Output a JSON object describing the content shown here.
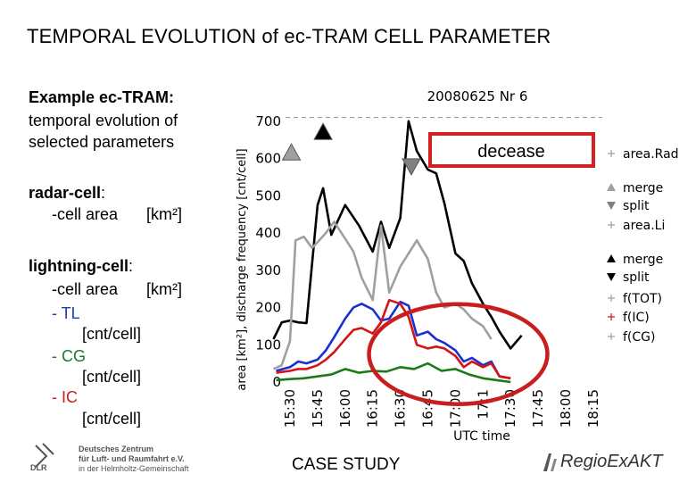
{
  "title": "TEMPORAL EVOLUTION of ec-TRAM CELL PARAMETER",
  "sidebar": {
    "intro_heading": "Example ec-TRAM:",
    "intro_line1": "temporal evolution of",
    "intro_line2": "selected parameters",
    "radar_heading": "radar-cell",
    "radar_colon": ":",
    "radar_area": "-cell area",
    "radar_unit": "[km²]",
    "lightning_heading": "lightning-cell",
    "lightning_colon": ":",
    "lightning_area": "-cell area",
    "lightning_unit": "[km²]",
    "tl_label": "- TL",
    "tl_unit": "[cnt/cell]",
    "cg_label": "- CG",
    "cg_unit": "[cnt/cell]",
    "ic_label": "- IC",
    "ic_unit": "[cnt/cell]"
  },
  "footer": {
    "case_study": "CASE STUDY",
    "dlr_line1": "Deutsches Zentrum",
    "dlr_line2": "für Luft- und Raumfahrt e.V.",
    "dlr_line3": "in der Helmholtz-Gemeinschaft",
    "dlr_logo": "DLR",
    "regio_logo": "RegioExAKT"
  },
  "chart_data": {
    "type": "line",
    "title": "20080625  Nr 6",
    "xlabel": "UTC time",
    "ylabel": "area [km²], discharge frequency [cnt/cell]",
    "ylim": [
      0,
      750
    ],
    "xlim": [
      0,
      11
    ],
    "yticks": [
      0,
      100,
      200,
      300,
      400,
      500,
      600,
      700
    ],
    "yticklabels": [
      "0",
      "100",
      "200",
      "300",
      "400",
      "500",
      "600",
      "700"
    ],
    "xticks": [
      0,
      1,
      2,
      3,
      4,
      5,
      6,
      7,
      8,
      9,
      10,
      11
    ],
    "xticklabels": [
      "15:30",
      "15:45",
      "16:00",
      "16:15",
      "16:30",
      "16:45",
      "17:00",
      "17:1",
      "17:30",
      "17:45",
      "18:00",
      "18:15"
    ],
    "dashed_level": 710,
    "series": [
      {
        "name": "area.Rad",
        "color": "#000000",
        "x": [
          -0.6,
          -0.3,
          0,
          0.3,
          0.6,
          1.0,
          1.2,
          1.5,
          2.0,
          2.5,
          3.0,
          3.3,
          3.6,
          4.0,
          4.3,
          4.6,
          5.0,
          5.3,
          5.6,
          6.0,
          6.3,
          6.6,
          7.0,
          7.3,
          7.6,
          8.0,
          8.4
        ],
        "y": [
          115,
          160,
          165,
          160,
          158,
          475,
          520,
          395,
          475,
          420,
          350,
          430,
          360,
          440,
          700,
          620,
          570,
          560,
          480,
          345,
          325,
          265,
          210,
          175,
          135,
          90,
          125
        ]
      },
      {
        "name": "area.Li",
        "color": "#a0a0a0",
        "x": [
          -0.6,
          -0.3,
          0,
          0.2,
          0.5,
          0.8,
          1.0,
          1.3,
          1.6,
          2.0,
          2.3,
          2.6,
          3.0,
          3.3,
          3.6,
          4.0,
          4.3,
          4.6,
          5.0,
          5.3,
          5.6,
          6.0,
          6.3,
          6.6,
          7.0,
          7.3
        ],
        "y": [
          35,
          45,
          110,
          380,
          390,
          360,
          375,
          400,
          430,
          385,
          350,
          280,
          220,
          420,
          240,
          310,
          345,
          380,
          330,
          240,
          200,
          210,
          195,
          170,
          150,
          115
        ]
      },
      {
        "name": "f(TOT)",
        "color": "#1a2fd0",
        "x": [
          -0.5,
          0,
          0.3,
          0.6,
          1.0,
          1.3,
          1.6,
          2.0,
          2.3,
          2.6,
          3.0,
          3.3,
          3.6,
          4.0,
          4.3,
          4.6,
          5.0,
          5.3,
          5.6,
          6.0,
          6.3,
          6.6,
          7.0,
          7.3,
          7.6,
          8.0
        ],
        "y": [
          30,
          40,
          55,
          50,
          60,
          85,
          120,
          170,
          200,
          210,
          195,
          165,
          170,
          215,
          205,
          125,
          135,
          115,
          105,
          85,
          55,
          65,
          45,
          55,
          15,
          10
        ]
      },
      {
        "name": "f(IC)",
        "color": "#d41515",
        "x": [
          -0.5,
          0,
          0.3,
          0.6,
          1.0,
          1.3,
          1.6,
          2.0,
          2.3,
          2.6,
          3.0,
          3.3,
          3.6,
          4.0,
          4.3,
          4.6,
          5.0,
          5.3,
          5.6,
          6.0,
          6.3,
          6.6,
          7.0,
          7.3,
          7.6,
          8.0
        ],
        "y": [
          25,
          30,
          35,
          35,
          45,
          60,
          80,
          115,
          140,
          145,
          130,
          160,
          220,
          210,
          175,
          100,
          90,
          95,
          90,
          70,
          40,
          55,
          40,
          50,
          15,
          10
        ]
      },
      {
        "name": "f(CG)",
        "color": "#1a7a1a",
        "x": [
          -0.5,
          0,
          0.5,
          1.0,
          1.5,
          2.0,
          2.5,
          3.0,
          3.5,
          4.0,
          4.5,
          5.0,
          5.5,
          6.0,
          6.5,
          7.0,
          7.5,
          8.0
        ],
        "y": [
          5,
          8,
          10,
          15,
          20,
          35,
          25,
          30,
          28,
          40,
          35,
          50,
          30,
          35,
          20,
          10,
          5,
          0
        ]
      }
    ],
    "markers": [
      {
        "name": "merge (area.Li)",
        "shape": "triangle-up",
        "color": "#a0a0a0",
        "x": 0.05,
        "y": 615
      },
      {
        "name": "merge (lightning)",
        "shape": "triangle-up",
        "color": "#000000",
        "x": 1.2,
        "y": 670
      },
      {
        "name": "split",
        "shape": "triangle-down",
        "color": "#808080",
        "x": 4.4,
        "y": 580
      }
    ],
    "legend": {
      "placement": "right",
      "entries": [
        {
          "label": "area.Rad",
          "marker": "+",
          "color": "#a0a0a0"
        },
        {
          "label": "merge",
          "marker": "triangle-up",
          "color": "#a0a0a0"
        },
        {
          "label": "split",
          "marker": "triangle-down",
          "color": "#808080"
        },
        {
          "label": "area.Li",
          "marker": "+",
          "color": "#a0a0a0"
        },
        {
          "label": "merge",
          "marker": "triangle-up",
          "color": "#000000"
        },
        {
          "label": "split",
          "marker": "triangle-down",
          "color": "#000000"
        },
        {
          "label": "f(TOT)",
          "marker": "+",
          "color": "#a0a0a0"
        },
        {
          "label": "f(IC)",
          "marker": "+",
          "color": "#d41515"
        },
        {
          "label": "f(CG)",
          "marker": "+",
          "color": "#a0a0a0"
        }
      ]
    },
    "annotation": {
      "text": "decease",
      "box_color": "#d42020"
    },
    "highlight_ellipse_color": "#c81e1e"
  }
}
